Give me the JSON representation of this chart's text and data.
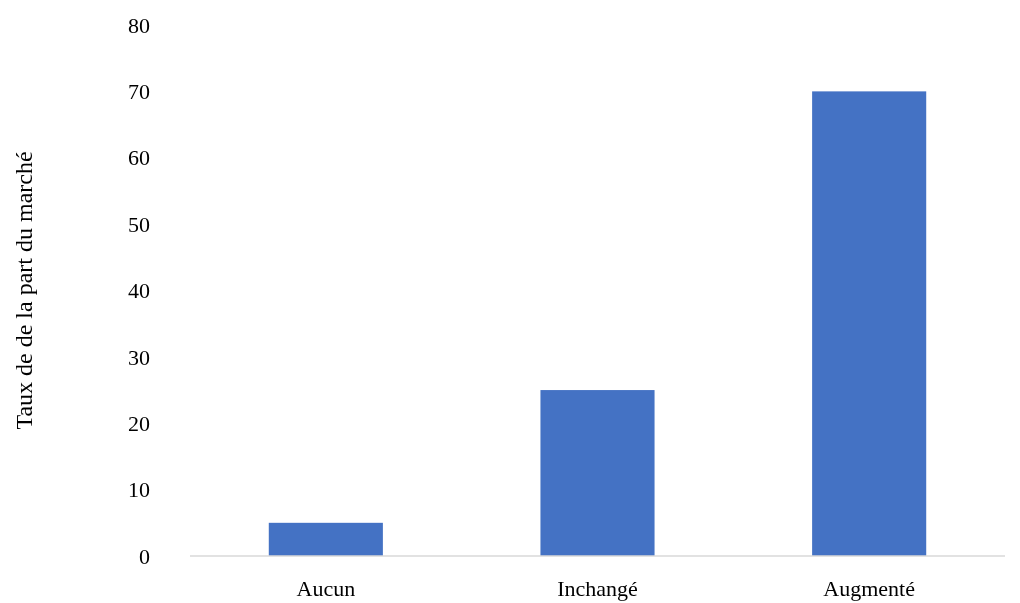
{
  "chart_data": {
    "type": "bar",
    "ylabel": "Taux de de la part du marché",
    "categories": [
      "Aucun",
      "Inchangé",
      "Augmenté"
    ],
    "values": [
      5,
      25,
      70
    ],
    "color": "#4472c4",
    "ylim": [
      0,
      80
    ],
    "yticks": [
      0,
      10,
      20,
      30,
      40,
      50,
      60,
      70,
      80
    ],
    "grid": false
  }
}
